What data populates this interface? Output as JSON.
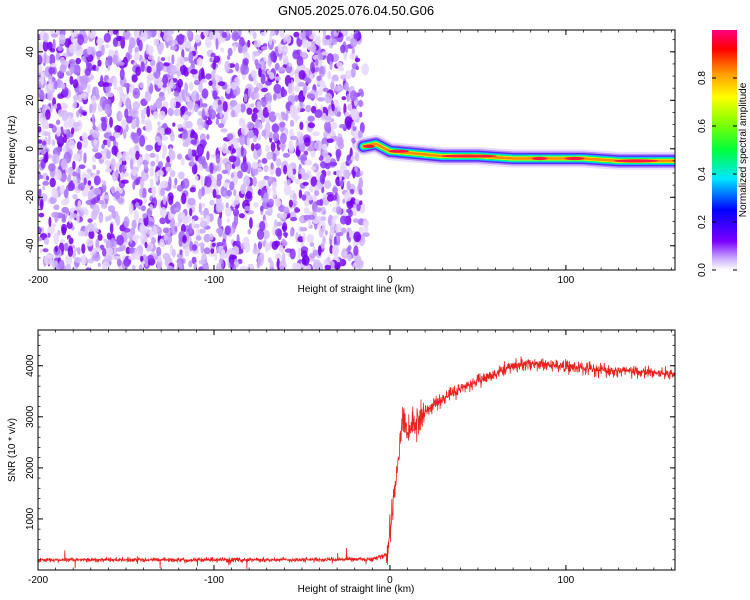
{
  "title": "GN05.2025.076.04.50.G06",
  "chart_data": [
    {
      "type": "heatmap",
      "xlabel": "Height of straight line (km)",
      "ylabel": "Frequency (Hz)",
      "xlim": [
        -200,
        162
      ],
      "ylim": [
        -50,
        49
      ],
      "xticks": [
        -200,
        -100,
        0,
        100
      ],
      "yticks": [
        -40,
        -20,
        0,
        20,
        40
      ],
      "colorbar": {
        "label": "Normalized spectral amplitude",
        "range": [
          0,
          1
        ],
        "ticks": [
          "0.0",
          "0.2",
          "0.4",
          "0.6",
          "0.8"
        ]
      },
      "noise_region_x": [
        -200,
        -15
      ],
      "signal_track": [
        {
          "x": -15,
          "y": 1
        },
        {
          "x": -8,
          "y": 2
        },
        {
          "x": 0,
          "y": -1
        },
        {
          "x": 15,
          "y": -2
        },
        {
          "x": 30,
          "y": -3
        },
        {
          "x": 50,
          "y": -3
        },
        {
          "x": 70,
          "y": -4
        },
        {
          "x": 90,
          "y": -4
        },
        {
          "x": 110,
          "y": -4
        },
        {
          "x": 130,
          "y": -5
        },
        {
          "x": 162,
          "y": -5
        }
      ]
    },
    {
      "type": "line",
      "xlabel": "Height of straight line (km)",
      "ylabel": "SNR (10 * v/v)",
      "xlim": [
        -200,
        162
      ],
      "ylim": [
        0,
        4700
      ],
      "xticks": [
        -200,
        -100,
        0,
        100
      ],
      "yticks": [
        1000,
        2000,
        3000,
        4000
      ],
      "series_color": "#e8221f",
      "series": [
        {
          "x": [
            -200,
            -150,
            -100,
            -50,
            -10,
            -2,
            0,
            3,
            6,
            8,
            10,
            14,
            20,
            30,
            40,
            50,
            60,
            70,
            80,
            90,
            100,
            110,
            120,
            130,
            140,
            150,
            162
          ],
          "y": [
            200,
            200,
            200,
            200,
            210,
            300,
            700,
            1600,
            2500,
            3100,
            2600,
            2900,
            3100,
            3350,
            3550,
            3700,
            3850,
            4000,
            4050,
            4020,
            3980,
            3950,
            3920,
            3900,
            3880,
            3860,
            3840
          ]
        }
      ]
    }
  ]
}
